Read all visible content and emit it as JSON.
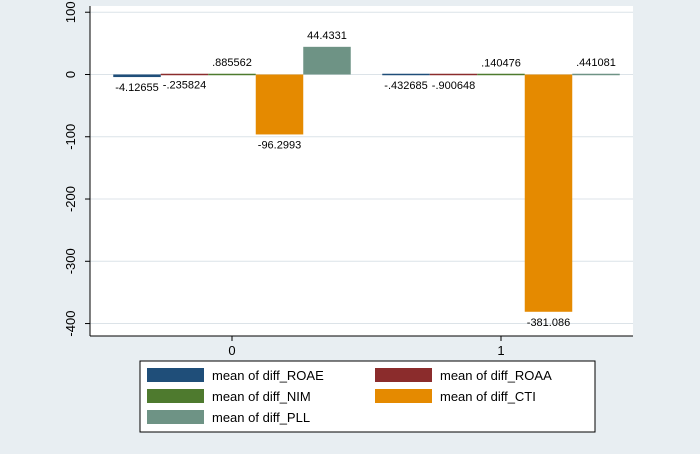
{
  "chart_data": {
    "type": "bar",
    "categories": [
      "0",
      "1"
    ],
    "ylim": [
      -420,
      110
    ],
    "yticks": [
      -400,
      -300,
      -200,
      -100,
      0,
      100
    ],
    "grid": true,
    "legend_position": "bottom",
    "series": [
      {
        "name": "mean of diff_ROAE",
        "color": "#1F4E79",
        "values": [
          -4.12655,
          -0.432685
        ],
        "labels": [
          "-4.12655",
          "-.432685"
        ]
      },
      {
        "name": "mean of diff_ROAA",
        "color": "#8B2C2C",
        "values": [
          -0.235824,
          -0.900648
        ],
        "labels": [
          "-.235824",
          "-.900648"
        ]
      },
      {
        "name": "mean of diff_NIM",
        "color": "#4E7A2E",
        "values": [
          0.885562,
          0.140476
        ],
        "labels": [
          ".885562",
          ".140476"
        ]
      },
      {
        "name": "mean of diff_CTI",
        "color": "#E58A00",
        "values": [
          -96.2993,
          -381.086
        ],
        "labels": [
          "-96.2993",
          "-381.086"
        ]
      },
      {
        "name": "mean of diff_PLL",
        "color": "#6E9385",
        "values": [
          44.4331,
          0.441081
        ],
        "labels": [
          "44.4331",
          ".441081"
        ]
      }
    ]
  },
  "colors": {
    "outer_background": "#E8EEF2",
    "plot_background": "#FFFFFF",
    "grid": "#DCE3E8",
    "axis": "#000000"
  }
}
